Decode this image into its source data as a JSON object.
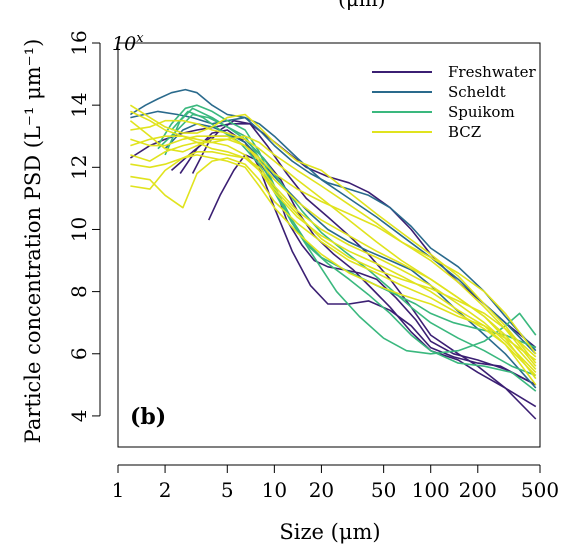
{
  "chart_data": {
    "type": "line",
    "panel_label": "(b)",
    "top_partial_text": "(μm)",
    "xlabel": "Size (μm)",
    "ylabel": "Particle concentration PSD (L⁻¹ μm⁻¹)",
    "y_exponent_label": "10^x",
    "x_scale": "log",
    "xlim": [
      1,
      500
    ],
    "ylim": [
      3,
      16
    ],
    "x_ticks": [
      1,
      2,
      5,
      10,
      20,
      50,
      100,
      200,
      500
    ],
    "y_ticks": [
      4,
      6,
      8,
      10,
      12,
      14,
      16
    ],
    "grid": false,
    "legend_position": "top-right",
    "groups": [
      {
        "name": "Freshwater",
        "color": "#3b1f73",
        "lines": [
          {
            "x": [
              1.2,
              1.6,
              2,
              2.6,
              3.2,
              4.2,
              5.2,
              7,
              9,
              12,
              16,
              22,
              30,
              40,
              55,
              75,
              100,
              150,
              220,
              300,
              470
            ],
            "y": [
              12.3,
              12.7,
              12.9,
              13.1,
              13.2,
              13.3,
              13.4,
              13.4,
              13.0,
              12.5,
              12.0,
              11.7,
              11.5,
              11.2,
              10.7,
              10.0,
              9.2,
              8.3,
              7.6,
              7.0,
              6.2
            ]
          },
          {
            "x": [
              2.5,
              3.2,
              4,
              5,
              6.5,
              8,
              10,
              13,
              17,
              22,
              30,
              40,
              55,
              75,
              100,
              140,
              200,
              280,
              470
            ],
            "y": [
              11.8,
              12.6,
              13.1,
              13.2,
              12.8,
              12.0,
              10.7,
              9.3,
              8.2,
              7.6,
              7.6,
              7.7,
              7.4,
              6.9,
              6.2,
              5.9,
              5.7,
              5.6,
              5.0
            ]
          },
          {
            "x": [
              3.8,
              4.5,
              5.5,
              6.5,
              8,
              10,
              12,
              15,
              18,
              22,
              28,
              35,
              45,
              60,
              80,
              100,
              140,
              200,
              300,
              470
            ],
            "y": [
              10.3,
              11.1,
              11.9,
              12.4,
              12.2,
              11.4,
              10.3,
              9.5,
              9.0,
              8.8,
              8.7,
              8.6,
              8.4,
              7.8,
              7.1,
              6.4,
              6.0,
              5.8,
              5.5,
              5.0
            ]
          },
          {
            "x": [
              3,
              3.8,
              4.5,
              5.5,
              7,
              9,
              12,
              16,
              22,
              30,
              40,
              55,
              75,
              100,
              150,
              200,
              300,
              470
            ],
            "y": [
              11.8,
              12.8,
              13.2,
              13.5,
              13.4,
              12.7,
              11.8,
              11.0,
              10.4,
              9.8,
              9.2,
              8.4,
              7.5,
              6.6,
              6.0,
              5.6,
              4.9,
              3.9
            ]
          },
          {
            "x": [
              2.2,
              3,
              4,
              5,
              6.5,
              8.5,
              11,
              14,
              18,
              24,
              32,
              42,
              55,
              75,
              100,
              150,
              200,
              300,
              470
            ],
            "y": [
              11.9,
              12.5,
              13.0,
              13.0,
              12.9,
              12.3,
              11.6,
              10.6,
              9.8,
              9.2,
              8.7,
              8.1,
              7.5,
              6.7,
              6.1,
              5.8,
              5.4,
              4.9,
              4.3
            ]
          }
        ]
      },
      {
        "name": "Scheldt",
        "color": "#2a6a8c",
        "lines": [
          {
            "x": [
              1.2,
              1.5,
              1.8,
              2.2,
              2.7,
              3.2,
              4,
              5,
              6.5,
              8,
              10,
              13,
              17,
              22,
              30,
              40,
              55,
              75,
              100,
              150,
              220,
              300,
              470
            ],
            "y": [
              13.7,
              14.0,
              14.2,
              14.4,
              14.5,
              14.4,
              14.0,
              13.7,
              13.6,
              13.2,
              12.7,
              12.2,
              11.8,
              11.5,
              11.3,
              11.1,
              10.7,
              10.1,
              9.4,
              8.8,
              8.0,
              7.2,
              6.1
            ]
          },
          {
            "x": [
              1.2,
              1.8,
              2.4,
              3,
              4,
              5,
              6.5,
              8,
              10,
              14,
              20,
              30,
              45,
              65,
              100,
              150,
              220,
              300,
              470
            ],
            "y": [
              13.6,
              13.8,
              13.7,
              13.6,
              13.4,
              13.5,
              13.6,
              13.4,
              13.0,
              12.3,
              11.6,
              11.0,
              10.4,
              9.8,
              9.1,
              8.4,
              7.6,
              7.0,
              6.0
            ]
          },
          {
            "x": [
              2,
              2.6,
              3.2,
              4,
              5,
              6.5,
              8,
              10,
              13,
              17,
              22,
              30,
              40,
              55,
              75,
              100,
              140,
              200,
              300,
              470
            ],
            "y": [
              12.6,
              13.2,
              13.4,
              13.3,
              13.1,
              12.8,
              12.3,
              11.7,
              11.1,
              10.5,
              10.0,
              9.6,
              9.3,
              9.0,
              8.7,
              8.2,
              7.5,
              6.8,
              6.0,
              4.9
            ]
          }
        ]
      },
      {
        "name": "Spuikom",
        "color": "#3ab87e",
        "lines": [
          {
            "x": [
              1.8,
              2.2,
              2.7,
              3.2,
              4,
              5,
              6.5,
              8,
              10,
              13,
              16,
              20,
              26,
              34,
              45,
              60,
              80,
              100,
              140,
              200,
              300,
              470
            ],
            "y": [
              12.7,
              13.4,
              13.9,
              14.0,
              13.8,
              13.5,
              13.2,
              12.5,
              11.4,
              10.3,
              9.6,
              9.1,
              8.8,
              8.5,
              8.2,
              7.9,
              7.6,
              7.3,
              7.0,
              6.8,
              6.6,
              6.2
            ]
          },
          {
            "x": [
              2,
              2.5,
              3,
              4,
              5,
              6.5,
              8,
              10,
              13,
              17,
              22,
              30,
              40,
              55,
              75,
              100,
              150,
              220,
              330,
              470
            ],
            "y": [
              12.4,
              13.5,
              13.9,
              13.6,
              13.3,
              13.0,
              12.3,
              11.3,
              10.2,
              9.4,
              8.9,
              8.4,
              7.9,
              7.3,
              6.6,
              6.1,
              5.7,
              5.6,
              5.4,
              4.8
            ]
          },
          {
            "x": [
              2.2,
              2.8,
              3.5,
              4.5,
              6,
              8,
              10,
              13,
              18,
              25,
              35,
              50,
              70,
              100,
              150,
              220,
              300,
              370,
              470
            ],
            "y": [
              13.2,
              13.8,
              13.6,
              13.2,
              12.8,
              12.1,
              11.2,
              10.2,
              9.1,
              8.0,
              7.2,
              6.5,
              6.1,
              6.0,
              6.1,
              6.4,
              6.9,
              7.3,
              6.6
            ]
          },
          {
            "x": [
              1.8,
              2.4,
              3,
              3.8,
              5,
              6.5,
              8.5,
              11,
              15,
              20,
              28,
              40,
              55,
              75,
              100,
              150,
              220,
              330,
              470
            ],
            "y": [
              12.6,
              13.2,
              13.7,
              13.6,
              13.3,
              12.9,
              12.3,
              11.5,
              10.6,
              9.9,
              9.3,
              8.7,
              8.1,
              7.5,
              7.0,
              6.5,
              6.1,
              5.6,
              5.3
            ]
          }
        ]
      },
      {
        "name": "BCZ",
        "color": "#e0e31e",
        "lines": [
          {
            "x": [
              1.2,
              1.6,
              2,
              2.6,
              3.2,
              4,
              5,
              6.5,
              8,
              10,
              14,
              20,
              30,
              45,
              65,
              100,
              150,
              220,
              300,
              470
            ],
            "y": [
              14.0,
              13.6,
              13.3,
              13.1,
              13.1,
              13.3,
              13.6,
              13.7,
              13.3,
              12.8,
              12.2,
              11.9,
              11.2,
              10.5,
              9.9,
              9.2,
              8.5,
              7.6,
              6.9,
              5.7
            ]
          },
          {
            "x": [
              1.2,
              1.6,
              2,
              2.6,
              3.2,
              4,
              5,
              6.5,
              8,
              10,
              14,
              20,
              30,
              45,
              65,
              100,
              150,
              220,
              300,
              470
            ],
            "y": [
              13.5,
              13.0,
              12.6,
              12.5,
              12.7,
              12.9,
              12.9,
              12.7,
              12.3,
              11.8,
              11.3,
              10.9,
              10.5,
              10.1,
              9.6,
              9.0,
              8.3,
              7.5,
              6.8,
              5.6
            ]
          },
          {
            "x": [
              1.2,
              1.6,
              2,
              2.6,
              3.2,
              4,
              5,
              6.5,
              8,
              10,
              14,
              20,
              30,
              45,
              65,
              100,
              150,
              220,
              300,
              470
            ],
            "y": [
              11.4,
              11.3,
              11.9,
              12.3,
              12.5,
              12.5,
              12.4,
              12.3,
              12.0,
              11.4,
              10.6,
              10.0,
              9.5,
              9.1,
              8.7,
              8.2,
              7.6,
              7.0,
              6.4,
              5.4
            ]
          },
          {
            "x": [
              1.2,
              1.6,
              2,
              2.6,
              3.2,
              4,
              5,
              6.5,
              8,
              10,
              14,
              20,
              30,
              45,
              65,
              100,
              150,
              220,
              300,
              470
            ],
            "y": [
              11.7,
              11.6,
              11.1,
              10.7,
              11.8,
              12.2,
              12.3,
              12.1,
              11.6,
              10.9,
              10.2,
              9.6,
              9.0,
              8.6,
              8.2,
              7.8,
              7.3,
              6.8,
              6.3,
              5.3
            ]
          },
          {
            "x": [
              1.2,
              1.6,
              2,
              2.6,
              3.2,
              4,
              5,
              6.5,
              8,
              10,
              14,
              20,
              30,
              45,
              65,
              100,
              150,
              220,
              300,
              470
            ],
            "y": [
              12.9,
              12.7,
              12.7,
              12.9,
              13.0,
              13.0,
              13.0,
              12.7,
              12.2,
              11.6,
              10.9,
              10.3,
              9.8,
              9.3,
              8.9,
              8.4,
              7.8,
              7.2,
              6.5,
              5.2
            ]
          },
          {
            "x": [
              1.2,
              1.6,
              2,
              2.6,
              3.2,
              4,
              5,
              6.5,
              8,
              10,
              14,
              20,
              30,
              45,
              65,
              100,
              150,
              220,
              300,
              470
            ],
            "y": [
              12.4,
              12.2,
              12.5,
              12.7,
              12.8,
              12.8,
              12.7,
              12.4,
              11.9,
              11.2,
              10.4,
              9.8,
              9.3,
              8.9,
              8.5,
              8.0,
              7.4,
              6.9,
              6.3,
              5.0
            ]
          },
          {
            "x": [
              1.2,
              1.6,
              2,
              2.6,
              3.2,
              4,
              5,
              6.5,
              8,
              10,
              14,
              20,
              30,
              45,
              65,
              100,
              150,
              220,
              300,
              470
            ],
            "y": [
              13.2,
              13.3,
              13.5,
              13.5,
              13.4,
              13.2,
              13.1,
              12.9,
              12.6,
              12.2,
              11.6,
              11.0,
              10.3,
              9.6,
              9.0,
              8.4,
              7.8,
              7.2,
              6.6,
              5.5
            ]
          },
          {
            "x": [
              1.2,
              1.6,
              2,
              2.6,
              3.2,
              4,
              5,
              6.5,
              8,
              10,
              14,
              20,
              30,
              45,
              65,
              100,
              150,
              220,
              300,
              470
            ],
            "y": [
              12.1,
              12.0,
              12.1,
              12.3,
              12.4,
              12.3,
              12.2,
              12.0,
              11.4,
              10.7,
              9.9,
              9.2,
              8.6,
              8.2,
              7.9,
              7.6,
              7.2,
              6.9,
              6.5,
              5.8
            ]
          },
          {
            "x": [
              1.2,
              1.6,
              2,
              2.6,
              3.2,
              4,
              5,
              6.5,
              8,
              10,
              14,
              20,
              30,
              45,
              65,
              100,
              150,
              220,
              300,
              470
            ],
            "y": [
              13.8,
              13.5,
              13.2,
              13.0,
              12.9,
              12.8,
              12.9,
              13.0,
              12.8,
              12.4,
              11.9,
              11.4,
              10.8,
              10.2,
              9.6,
              9.1,
              8.6,
              8.0,
              7.3,
              6.0
            ]
          },
          {
            "x": [
              1.2,
              1.6,
              2,
              2.6,
              3.2,
              4,
              5,
              6.5,
              8,
              10,
              14,
              20,
              30,
              45,
              65,
              100,
              150,
              220,
              300,
              470
            ],
            "y": [
              12.7,
              12.9,
              13.0,
              13.0,
              12.8,
              12.6,
              12.5,
              12.3,
              11.9,
              11.3,
              10.5,
              9.7,
              9.1,
              8.7,
              8.4,
              8.1,
              7.7,
              7.3,
              6.8,
              5.9
            ]
          }
        ]
      }
    ]
  }
}
